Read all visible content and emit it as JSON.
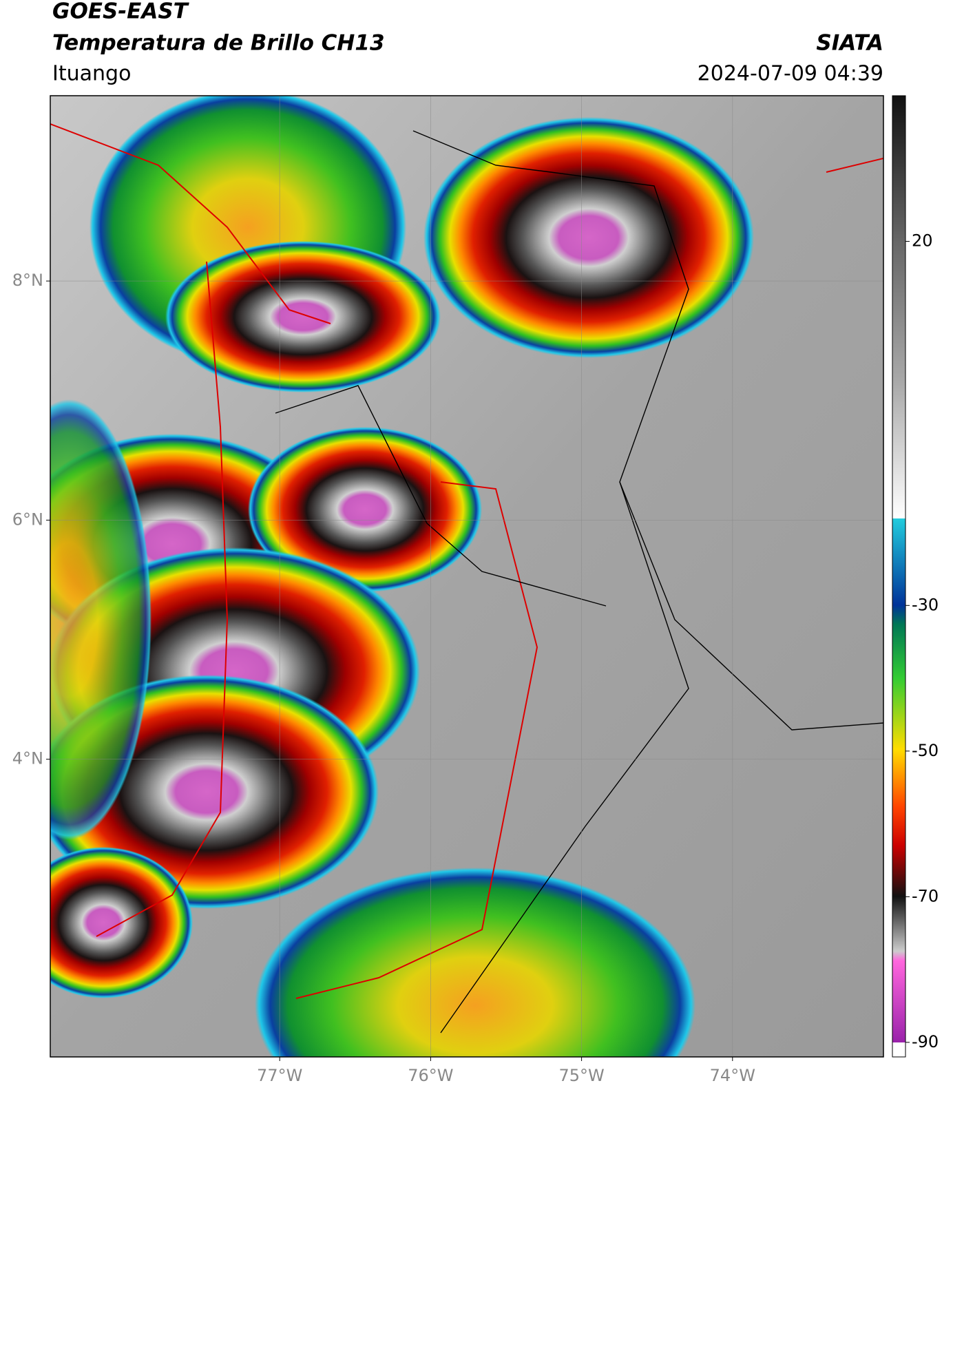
{
  "chart_data": {
    "type": "map",
    "title": "GOES-EAST",
    "subtitle": "Temperatura de Brillo CH13",
    "source": "SIATA",
    "location": "Ituango",
    "timestamp": "2024-07-09 04:39",
    "xlim": [
      -78.52,
      -73.0
    ],
    "ylim": [
      1.51,
      9.55
    ],
    "xticks": [
      {
        "value": -77,
        "label": "77°W"
      },
      {
        "value": -76,
        "label": "76°W"
      },
      {
        "value": -75,
        "label": "75°W"
      },
      {
        "value": -74,
        "label": "74°W"
      }
    ],
    "yticks": [
      {
        "value": 4,
        "label": "4°N"
      },
      {
        "value": 6,
        "label": "6°N"
      },
      {
        "value": 8,
        "label": "8°N"
      }
    ],
    "colorbar_lim": [
      -92,
      40
    ],
    "colorbar_ticks": [
      20,
      -30,
      -50,
      -70,
      -90
    ],
    "grid": true
  }
}
